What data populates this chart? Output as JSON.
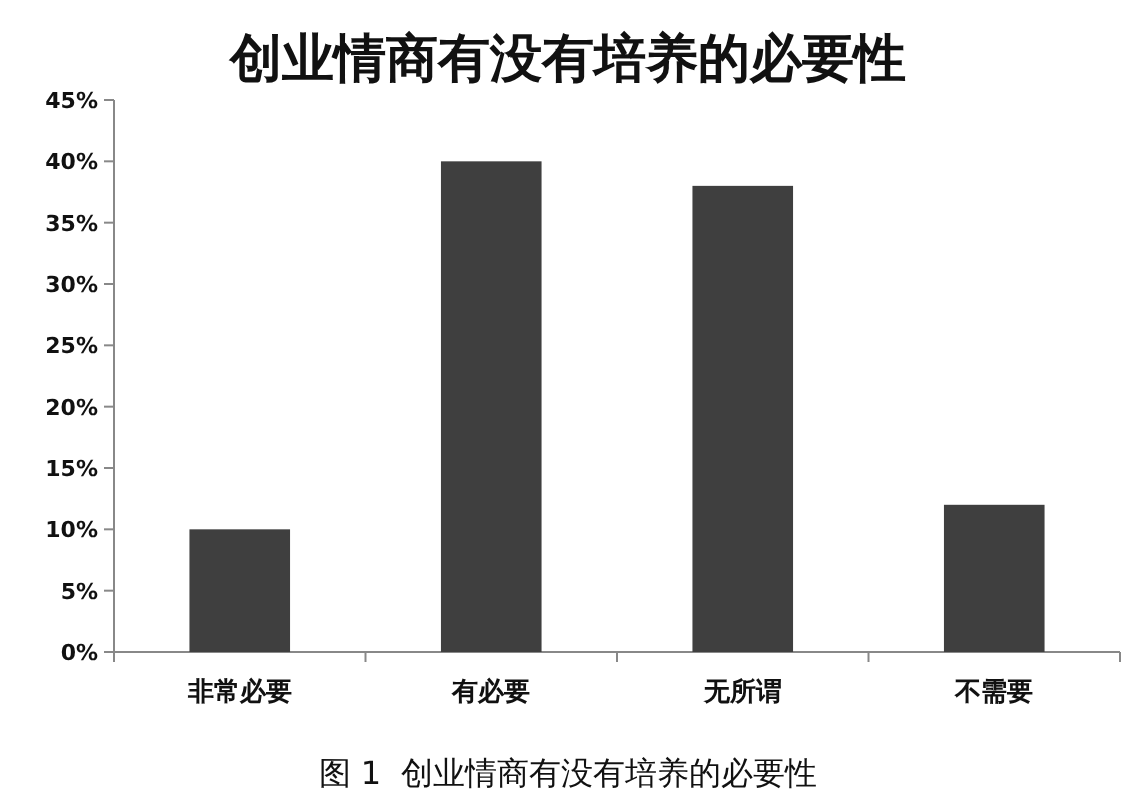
{
  "chart_data": {
    "type": "bar",
    "title": "创业情商有没有培养的必要性",
    "categories": [
      "非常必要",
      "有必要",
      "无所谓",
      "不需要"
    ],
    "values": [
      10,
      40,
      38,
      12
    ],
    "color": "#3f3f3f",
    "ylim": [
      0,
      45
    ],
    "yticks": [
      {
        "value": 0,
        "label": "0%"
      },
      {
        "value": 5,
        "label": "5%"
      },
      {
        "value": 10,
        "label": "10%"
      },
      {
        "value": 15,
        "label": "15%"
      },
      {
        "value": 20,
        "label": "20%"
      },
      {
        "value": 25,
        "label": "25%"
      },
      {
        "value": 30,
        "label": "30%"
      },
      {
        "value": 35,
        "label": "35%"
      },
      {
        "value": 40,
        "label": "40%"
      },
      {
        "value": 45,
        "label": "45%"
      }
    ],
    "annotations": [
      "图 1  创业情商有没有培养的必要性"
    ]
  }
}
